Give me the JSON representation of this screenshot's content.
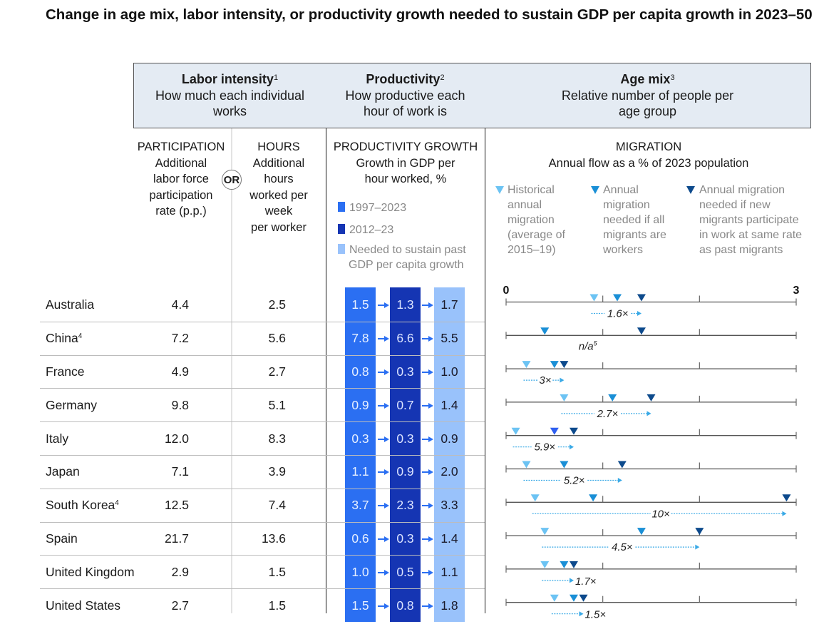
{
  "title": "Change in age mix, labor intensity, or productivity growth needed to sustain GDP per capita growth in 2023–50",
  "headers": {
    "labor_intensity": {
      "title": "Labor intensity",
      "note": "1",
      "desc": "How much each individual works"
    },
    "productivity": {
      "title": "Productivity",
      "note": "2",
      "desc": "How productive each hour of work is"
    },
    "age_mix": {
      "title": "Age mix",
      "note": "3",
      "desc": "Relative number of people per age group"
    }
  },
  "subheaders": {
    "participation": {
      "caption": "PARTICIPATION",
      "lines": [
        "Additional",
        "labor force",
        "participation",
        "rate (p.p.)"
      ]
    },
    "or_label": "OR",
    "hours": {
      "caption": "HOURS",
      "lines": [
        "Additional",
        "hours",
        "worked per",
        "week",
        "per worker"
      ]
    },
    "productivity_growth": {
      "caption": "PRODUCTIVITY GROWTH",
      "lines": [
        "Growth in GDP per",
        "hour worked, %"
      ]
    },
    "migration": {
      "caption": "MIGRATION",
      "desc": "Annual flow as a % of 2023 population"
    }
  },
  "productivity_legend": [
    {
      "label": "1997–2023",
      "color": "#2b6ff2"
    },
    {
      "label": "2012–23",
      "color": "#1535b3"
    },
    {
      "label": "Needed to sustain past GDP per capita growth",
      "label_lines": [
        "Needed to sustain past",
        "GDP per capita growth"
      ],
      "color": "#99c2fb"
    }
  ],
  "migration_legend": [
    {
      "lines": [
        "Historical",
        "annual",
        "migration",
        "(average of",
        "2015–19)"
      ],
      "color": "#6cc3f3"
    },
    {
      "lines": [
        "Annual",
        "migration",
        "needed if all",
        "migrants are",
        "workers"
      ],
      "color": "#1a8fd6"
    },
    {
      "lines": [
        "Annual migration",
        "needed if new",
        "migrants participate",
        "in work at same rate",
        "as past migrants"
      ],
      "color": "#0d4a8c"
    }
  ],
  "colors": {
    "header_fill": "#e4ebf3",
    "prod_1997": "#2b6ff2",
    "prod_2012": "#1535b3",
    "prod_needed": "#99c2fb",
    "mig_hist": "#6cc3f3",
    "mig_all": "#1a8fd6",
    "mig_new": "#0d4a8c",
    "mig_arrow": "#39a9e6"
  },
  "chart_data": {
    "type": "table",
    "title": "Change in age mix, labor intensity, or productivity growth needed to sustain GDP per capita growth in 2023–50",
    "migration_axis": {
      "min": 0,
      "max": 3,
      "tick_labels": [
        "0",
        "3"
      ],
      "ticks": [
        0,
        1,
        2,
        3
      ],
      "unit": "% of 2023 population"
    },
    "rows": [
      {
        "country": "Australia",
        "note": "",
        "participation": "4.4",
        "hours": "2.5",
        "prod_1997_2023": "1.5",
        "prod_2012_23": "1.3",
        "prod_needed": "1.7",
        "mig_hist": 0.91,
        "mig_all_workers": 1.15,
        "mig_new_rate": 1.4,
        "multiplier": "1.6×"
      },
      {
        "country": "China",
        "note": "4",
        "participation": "7.2",
        "hours": "5.6",
        "prod_1997_2023": "7.8",
        "prod_2012_23": "6.6",
        "prod_needed": "5.5",
        "mig_hist": null,
        "mig_all_workers": 0.4,
        "mig_new_rate": 1.4,
        "multiplier": "n/a",
        "multiplier_note": "5"
      },
      {
        "country": "France",
        "note": "",
        "participation": "4.9",
        "hours": "2.7",
        "prod_1997_2023": "0.8",
        "prod_2012_23": "0.3",
        "prod_needed": "1.0",
        "mig_hist": 0.21,
        "mig_all_workers": 0.5,
        "mig_new_rate": 0.6,
        "multiplier": "3×"
      },
      {
        "country": "Germany",
        "note": "",
        "participation": "9.8",
        "hours": "5.1",
        "prod_1997_2023": "0.9",
        "prod_2012_23": "0.7",
        "prod_needed": "1.4",
        "mig_hist": 0.6,
        "mig_all_workers": 1.1,
        "mig_new_rate": 1.5,
        "multiplier": "2.7×"
      },
      {
        "country": "Italy",
        "note": "",
        "participation": "12.0",
        "hours": "8.3",
        "prod_1997_2023": "0.3",
        "prod_2012_23": "0.3",
        "prod_needed": "0.9",
        "mig_hist": 0.1,
        "mig_all_workers": 0.5,
        "mig_new_rate": 0.7,
        "multiplier": "5.9×"
      },
      {
        "country": "Japan",
        "note": "",
        "participation": "7.1",
        "hours": "3.9",
        "prod_1997_2023": "1.1",
        "prod_2012_23": "0.9",
        "prod_needed": "2.0",
        "mig_hist": 0.21,
        "mig_all_workers": 0.6,
        "mig_new_rate": 1.2,
        "multiplier": "5.2×"
      },
      {
        "country": "South Korea",
        "note": "4",
        "participation": "12.5",
        "hours": "7.4",
        "prod_1997_2023": "3.7",
        "prod_2012_23": "2.3",
        "prod_needed": "3.3",
        "mig_hist": 0.3,
        "mig_all_workers": 0.9,
        "mig_new_rate": 2.9,
        "multiplier": "10×"
      },
      {
        "country": "Spain",
        "note": "",
        "participation": "21.7",
        "hours": "13.6",
        "prod_1997_2023": "0.6",
        "prod_2012_23": "0.3",
        "prod_needed": "1.4",
        "mig_hist": 0.4,
        "mig_all_workers": 1.4,
        "mig_new_rate": 2.0,
        "multiplier": "4.5×"
      },
      {
        "country": "United Kingdom",
        "note": "",
        "participation": "2.9",
        "hours": "1.5",
        "prod_1997_2023": "1.0",
        "prod_2012_23": "0.5",
        "prod_needed": "1.1",
        "mig_hist": 0.4,
        "mig_all_workers": 0.6,
        "mig_new_rate": 0.7,
        "multiplier": "1.7×"
      },
      {
        "country": "United States",
        "note": "",
        "participation": "2.7",
        "hours": "1.5",
        "prod_1997_2023": "1.5",
        "prod_2012_23": "0.8",
        "prod_needed": "1.8",
        "mig_hist": 0.5,
        "mig_all_workers": 0.7,
        "mig_new_rate": 0.8,
        "multiplier": "1.5×"
      }
    ]
  }
}
